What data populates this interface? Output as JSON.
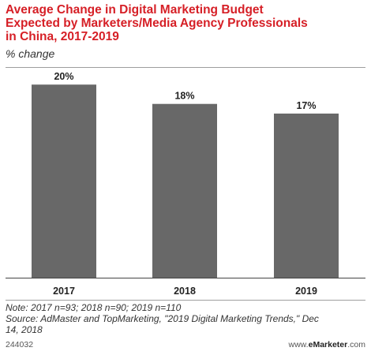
{
  "chart_data": {
    "type": "bar",
    "title": "Average Change in Digital Marketing Budget Expected by Marketers/Media Agency Professionals in China, 2017-2019",
    "subtitle": "% change",
    "categories": [
      "2017",
      "2018",
      "2019"
    ],
    "values": [
      20,
      18,
      17
    ],
    "value_labels": [
      "20%",
      "18%",
      "17%"
    ],
    "ylim": [
      0,
      21
    ],
    "grid": false,
    "bar_color": "#686868",
    "xlabel": "",
    "ylabel": ""
  },
  "header": {
    "title_lines": [
      "Average Change in Digital Marketing Budget",
      "Expected by Marketers/Media Agency Professionals",
      "in China, 2017-2019"
    ],
    "subtitle": "% change"
  },
  "footer": {
    "note": "Note: 2017 n=93; 2018 n=90; 2019 n=110",
    "source_line1": "Source: AdMaster and TopMarketing, \"2019 Digital Marketing Trends,\" Dec",
    "source_line2": "14, 2018",
    "chart_id": "244032",
    "brand_prefix": "www.",
    "brand_name": "eMarketer",
    "brand_suffix": ".com"
  },
  "colors": {
    "title": "#d61f26",
    "bar": "#686868",
    "rule": "#9e9e9e"
  }
}
